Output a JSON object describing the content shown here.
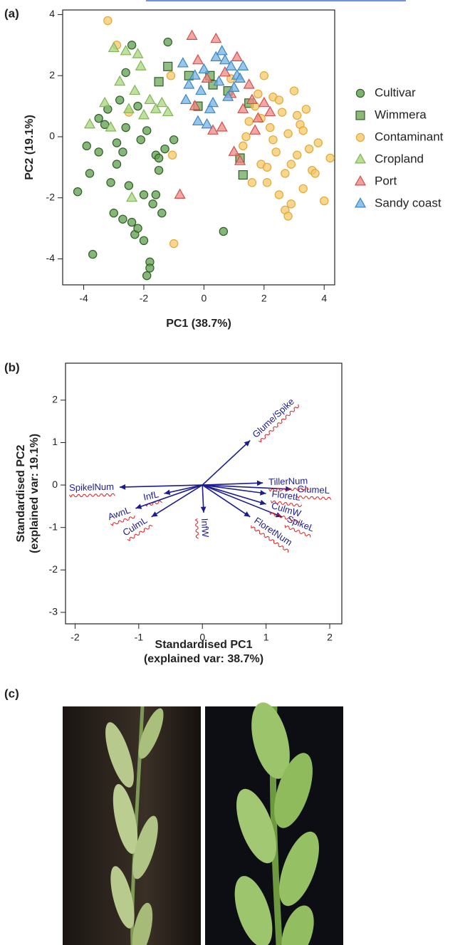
{
  "panels": [
    "(a)",
    "(b)",
    "(c)"
  ],
  "chart_data": [
    {
      "type": "scatter",
      "xlabel": "PC1 (38.7%)",
      "ylabel": "PC2 (19.1%)",
      "xlim": [
        -4.7,
        4.35
      ],
      "ylim": [
        -4.85,
        4.15
      ],
      "xticks": [
        -4,
        -2,
        0,
        2,
        4
      ],
      "yticks": [
        -4,
        -2,
        0,
        2,
        4
      ],
      "legend": "right",
      "series": [
        {
          "name": "Cultivar",
          "marker": "circle",
          "color": "#5f9e4e",
          "edgecolor": "#2d5e22",
          "x": [
            -4.2,
            -3.9,
            -3.7,
            -3.5,
            -3.3,
            -3.1,
            -3.0,
            -2.9,
            -2.8,
            -2.7,
            -2.6,
            -2.5,
            -2.4,
            -2.3,
            -2.2,
            -2.1,
            -2.0,
            -1.9,
            -1.8,
            -1.7,
            -1.6,
            -1.5,
            -1.4,
            -1.3,
            -1.2,
            -2.6,
            -2.2,
            -1.9,
            -3.2,
            -2.9,
            -1.6,
            -1.5,
            -2.0,
            -3.8,
            -2.4,
            -1.0,
            0.65,
            -1.8,
            -2.7,
            -3.5
          ],
          "values": [
            -1.8,
            -0.3,
            -3.85,
            -0.5,
            0.4,
            -1.5,
            -2.5,
            -0.9,
            1.2,
            -2.7,
            0.3,
            -1.6,
            3.0,
            -3.2,
            1.0,
            -0.1,
            -1.9,
            0.2,
            -4.1,
            -2.2,
            -0.6,
            -1.1,
            -2.5,
            -0.4,
            3.1,
            2.1,
            -3.0,
            -4.55,
            0.9,
            -0.2,
            -1.9,
            -0.7,
            -3.4,
            -1.2,
            -2.8,
            -0.1,
            -3.1,
            -4.3,
            -0.5,
            0.6
          ]
        },
        {
          "name": "Wimmera",
          "marker": "square",
          "color": "#6fa85a",
          "edgecolor": "#2d5e22",
          "x": [
            -1.2,
            -1.5,
            -0.2,
            0.3,
            1.2,
            0.2,
            1.5,
            -0.5,
            0.8,
            1.3
          ],
          "values": [
            2.3,
            1.8,
            1.0,
            1.7,
            -0.7,
            2.0,
            1.1,
            2.0,
            1.5,
            -1.25
          ]
        },
        {
          "name": "Contaminant",
          "marker": "circle",
          "color": "#f6c867",
          "edgecolor": "#e0a93a",
          "x": [
            -3.2,
            -2.5,
            -1.0,
            -1.05,
            0.9,
            1.3,
            1.5,
            1.7,
            1.9,
            2.0,
            2.1,
            2.2,
            2.3,
            2.4,
            2.5,
            2.6,
            2.7,
            2.8,
            2.9,
            3.0,
            3.1,
            3.2,
            3.3,
            3.4,
            3.5,
            3.6,
            3.8,
            4.0,
            4.2,
            1.8,
            2.1,
            2.5,
            2.9,
            3.3,
            1.4,
            1.6,
            2.7,
            3.1,
            2.3,
            1.9,
            3.7,
            2.8,
            -2.9,
            -1.1
          ],
          "values": [
            3.8,
            0.8,
            -3.5,
            -0.6,
            1.9,
            -0.3,
            0.5,
            1.0,
            -0.9,
            2.0,
            -1.5,
            0.3,
            1.3,
            -0.5,
            -1.9,
            0.8,
            -1.2,
            0.1,
            -2.2,
            1.5,
            -0.6,
            0.4,
            -1.7,
            0.9,
            -0.4,
            -1.1,
            -0.2,
            -2.1,
            -0.7,
            1.4,
            -1.0,
            1.2,
            -0.9,
            0.2,
            0.0,
            -1.5,
            -2.4,
            0.7,
            -0.1,
            0.6,
            -1.2,
            -2.6,
            3.0,
            2.0
          ]
        },
        {
          "name": "Cropland",
          "marker": "triangle",
          "color": "#aad57f",
          "edgecolor": "#7fb556",
          "x": [
            -3.8,
            -3.3,
            -3.0,
            -2.8,
            -2.6,
            -2.5,
            -2.3,
            -2.2,
            -2.0,
            -1.8,
            -1.6,
            -1.4,
            -1.2,
            -2.4,
            -3.1,
            -2.1
          ],
          "values": [
            0.4,
            1.1,
            2.9,
            1.8,
            2.8,
            0.9,
            1.5,
            2.7,
            0.7,
            1.2,
            0.9,
            1.1,
            0.8,
            -2.0,
            0.3,
            2.3
          ]
        },
        {
          "name": "Port",
          "marker": "triangle",
          "color": "#ef8a86",
          "edgecolor": "#d2504b",
          "x": [
            -0.4,
            -0.2,
            0.1,
            0.4,
            0.6,
            0.9,
            1.1,
            1.3,
            1.5,
            1.7,
            2.0,
            -0.8,
            0.3,
            0.7,
            1.2,
            1.6,
            -0.3,
            1.0,
            1.8,
            2.2
          ],
          "values": [
            3.3,
            2.5,
            1.9,
            3.2,
            0.3,
            1.4,
            2.6,
            0.9,
            1.7,
            0.2,
            1.1,
            -1.9,
            0.2,
            2.1,
            -0.8,
            1.2,
            1.0,
            -0.5,
            0.6,
            0.8
          ]
        },
        {
          "name": "Sandy coast",
          "marker": "triangle",
          "color": "#74b3e3",
          "edgecolor": "#3c86c2",
          "x": [
            -0.7,
            -0.5,
            -0.3,
            -0.1,
            0.0,
            0.2,
            0.4,
            0.5,
            0.7,
            0.8,
            0.9,
            1.0,
            1.1,
            1.3,
            -0.6,
            0.1,
            0.6,
            1.2,
            -0.2,
            0.3
          ],
          "values": [
            2.4,
            1.7,
            2.0,
            1.5,
            2.2,
            0.9,
            2.6,
            1.8,
            2.5,
            1.3,
            2.3,
            1.6,
            2.0,
            2.3,
            1.2,
            0.4,
            2.8,
            1.9,
            0.5,
            1.1
          ]
        }
      ]
    },
    {
      "type": "biplot",
      "xlabel": [
        "Standardised PC1",
        "(explained var: 38.7%)"
      ],
      "ylabel": [
        "Standardised PC2",
        "(explained var: 19.1%)"
      ],
      "xlim": [
        -2.15,
        2.19
      ],
      "ylim": [
        -3.27,
        2.87
      ],
      "xticks": [
        -2,
        -1,
        0,
        1,
        2
      ],
      "yticks": [
        -3,
        -2,
        -1,
        0,
        1,
        2
      ],
      "color": "#1c1c8f",
      "vectors": [
        {
          "name": "Glume/Spike",
          "x": 0.75,
          "y": 1.05
        },
        {
          "name": "SpikelNum",
          "x": -1.3,
          "y": -0.05
        },
        {
          "name": "InfL",
          "x": -0.6,
          "y": -0.2
        },
        {
          "name": "AwnL",
          "x": -1.05,
          "y": -0.55
        },
        {
          "name": "CulmL",
          "x": -0.8,
          "y": -0.75
        },
        {
          "name": "InfW",
          "x": 0.02,
          "y": -0.65
        },
        {
          "name": "FloretNum",
          "x": 0.75,
          "y": -0.75
        },
        {
          "name": "SpikeL",
          "x": 1.25,
          "y": -0.75
        },
        {
          "name": "CulmW",
          "x": 1.0,
          "y": -0.45
        },
        {
          "name": "FloretL",
          "x": 1.0,
          "y": -0.2
        },
        {
          "name": "GlumeL",
          "x": 1.4,
          "y": -0.1
        },
        {
          "name": "TillerNum",
          "x": 0.95,
          "y": 0.05
        }
      ]
    }
  ]
}
